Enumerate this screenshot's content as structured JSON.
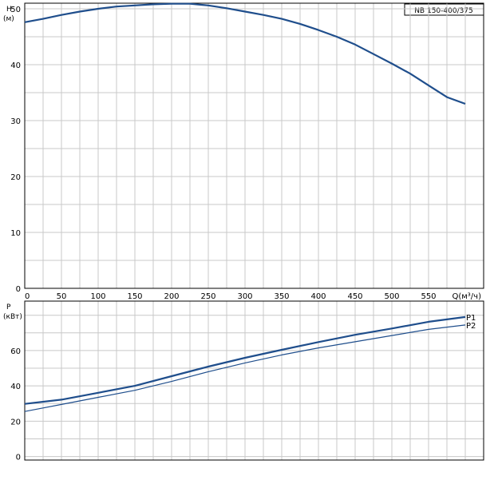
{
  "model": "NB 150-400/375",
  "chart_data": [
    {
      "type": "line",
      "ylabel": "H",
      "yunit": "(м)",
      "xlabel": "Q(м³/ч)",
      "xlim": [
        0,
        625
      ],
      "ylim": [
        0,
        51
      ],
      "grid": true,
      "x_ticks": [
        0,
        50,
        100,
        150,
        200,
        250,
        300,
        350,
        400,
        450,
        500,
        550
      ],
      "y_ticks": [
        0,
        10,
        20,
        30,
        40,
        50
      ],
      "series": [
        {
          "x": [
            0,
            25,
            50,
            75,
            100,
            125,
            150,
            175,
            200,
            225,
            250,
            275,
            300,
            325,
            350,
            375,
            400,
            425,
            450,
            475,
            500,
            525,
            550,
            575,
            600
          ],
          "y": [
            47.6,
            48.2,
            48.9,
            49.5,
            50.0,
            50.4,
            50.6,
            50.8,
            50.9,
            50.9,
            50.6,
            50.1,
            49.5,
            48.9,
            48.2,
            47.3,
            46.2,
            45.0,
            43.6,
            41.9,
            40.2,
            38.4,
            36.3,
            34.2,
            33.0
          ]
        }
      ]
    },
    {
      "type": "line",
      "ylabel": "P",
      "yunit": "(кВт)",
      "xlim": [
        0,
        625
      ],
      "ylim": [
        -2,
        88
      ],
      "grid": true,
      "y_ticks": [
        0,
        20,
        40,
        60
      ],
      "series": [
        {
          "name": "P1",
          "x": [
            0,
            50,
            100,
            150,
            200,
            250,
            300,
            350,
            400,
            450,
            500,
            550,
            600
          ],
          "y": [
            29.8,
            32.2,
            36.1,
            40.0,
            45.5,
            50.9,
            55.9,
            60.4,
            64.8,
            68.9,
            72.5,
            76.3,
            79.0
          ]
        },
        {
          "name": "P2",
          "x": [
            0,
            50,
            100,
            150,
            200,
            250,
            300,
            350,
            400,
            450,
            500,
            550,
            600
          ],
          "y": [
            25.5,
            29.5,
            33.5,
            37.5,
            42.5,
            48.0,
            53.0,
            57.5,
            61.5,
            65.0,
            68.5,
            72.0,
            74.5
          ]
        }
      ]
    }
  ]
}
